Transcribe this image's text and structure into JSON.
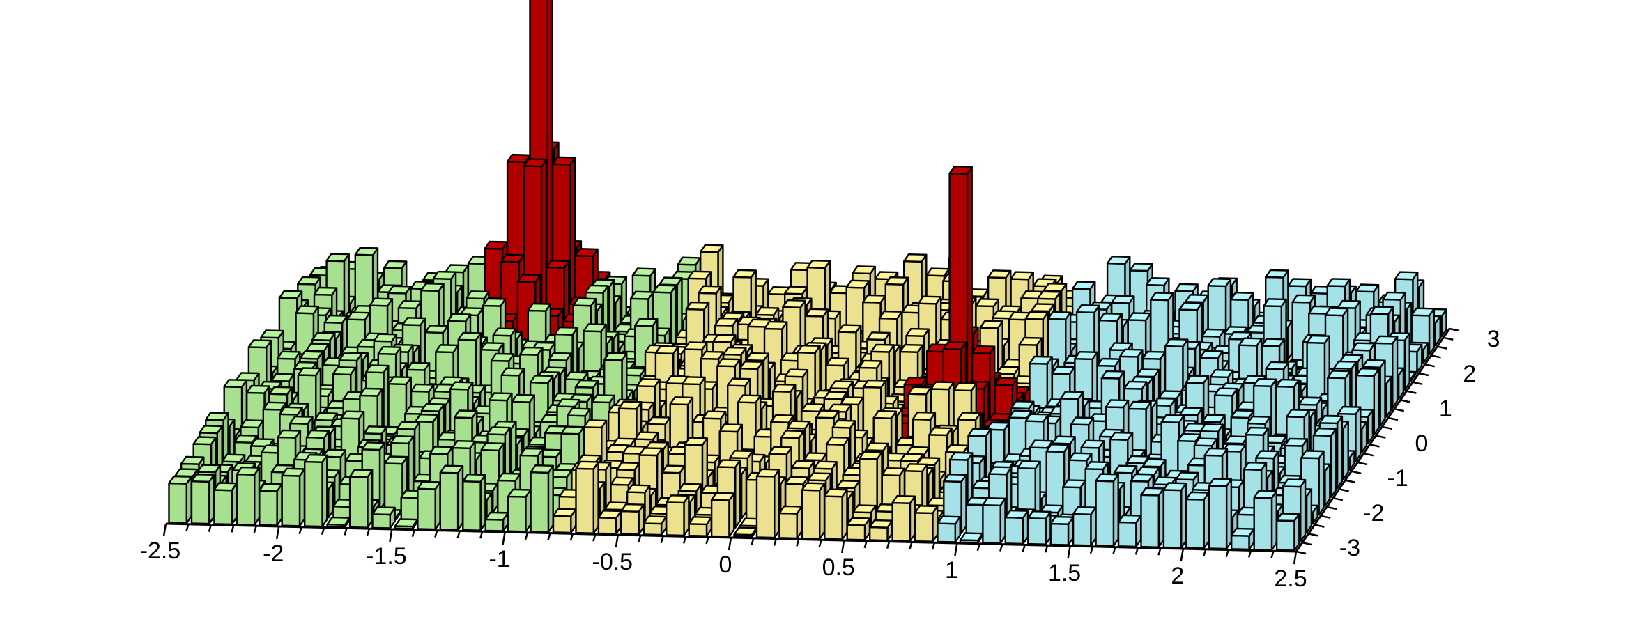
{
  "chart_data": {
    "type": "bar3d",
    "title": "",
    "xlabel": "",
    "ylabel": "",
    "zlabel": "",
    "xlim": [
      -2.5,
      2.5
    ],
    "ylim": [
      -3.2,
      3.2
    ],
    "grid": false,
    "legend": "none",
    "x_ticks": [
      "-2.5",
      "-2",
      "-1.5",
      "-1",
      "-0.5",
      "0",
      "0.5",
      "1",
      "1.5",
      "2",
      "2.5"
    ],
    "y_ticks": [
      "-3",
      "-2",
      "-1",
      "0",
      "1",
      "2",
      "3"
    ],
    "x_bins": 50,
    "y_bins": 25,
    "series": [
      {
        "x_range": [
          -2.5,
          -0.8
        ],
        "color": "#b6f59b"
      },
      {
        "x_range": [
          -0.8,
          0.9
        ],
        "color": "#fff59a"
      },
      {
        "x_range": [
          0.9,
          2.5
        ],
        "color": "#b3f6fb"
      }
    ],
    "peaks": [
      {
        "x": -1.45,
        "y": 2.5,
        "height": 1.0,
        "color": "#c00000"
      },
      {
        "x": 0.6,
        "y": 0.3,
        "height": 0.45,
        "color": "#c00000"
      }
    ],
    "background_height_range": [
      0.02,
      0.12
    ],
    "peak_color": "#c00000"
  }
}
